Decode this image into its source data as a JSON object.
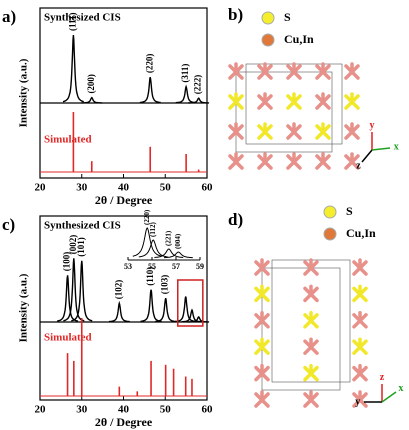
{
  "chart_data": [
    {
      "type": "xrd",
      "label": "a)",
      "xlabel": "2θ / Degree",
      "ylabel": "Intensity (a.u.)",
      "xlim": [
        20,
        60
      ],
      "xticks": [
        20,
        30,
        40,
        50,
        60
      ],
      "ylim": [
        0,
        100
      ],
      "series": [
        {
          "name": "Synthesized CIS",
          "color": "#000000",
          "style": "profile",
          "x": [
            28.0,
            32.4,
            46.4,
            55.0,
            58.0
          ],
          "values": [
            100,
            8,
            38,
            24,
            7
          ],
          "peak_labels": [
            "(111)",
            "(200)",
            "(220)",
            "(311)",
            "(222)"
          ]
        },
        {
          "name": "Simulated",
          "color": "#e02828",
          "style": "stick",
          "x": [
            28.0,
            32.4,
            46.4,
            55.0,
            58.0
          ],
          "values": [
            100,
            18,
            42,
            30,
            4
          ]
        }
      ]
    },
    {
      "type": "xrd",
      "label": "c)",
      "xlabel": "2θ / Degree",
      "ylabel": "Intensity (a.u.)",
      "xlim": [
        20,
        60
      ],
      "xticks": [
        20,
        30,
        40,
        50,
        60
      ],
      "ylim": [
        0,
        100
      ],
      "series": [
        {
          "name": "Synthesized CIS",
          "color": "#000000",
          "style": "profile",
          "x": [
            26.6,
            28.1,
            30.0,
            39.0,
            46.6,
            50.1,
            54.9,
            56.4,
            58.0
          ],
          "values": [
            55,
            75,
            72,
            22,
            38,
            28,
            30,
            14,
            6
          ],
          "peak_labels": [
            "(100)",
            "(002)",
            "(101)",
            "(102)",
            "(110)",
            "(103)",
            null,
            null,
            null
          ]
        },
        {
          "name": "Simulated",
          "color": "#e02828",
          "style": "stick",
          "x": [
            26.6,
            28.1,
            30.0,
            39.0,
            43.3,
            46.6,
            50.1,
            52.0,
            54.9,
            56.4
          ],
          "values": [
            55,
            45,
            100,
            12,
            6,
            45,
            40,
            35,
            25,
            22
          ]
        }
      ],
      "inset": {
        "xlim": [
          53,
          59
        ],
        "xticks": [
          53,
          55,
          57,
          59
        ],
        "x": [
          54.6,
          55.1,
          56.4,
          57.2
        ],
        "values": [
          100,
          60,
          30,
          20
        ],
        "peak_labels": [
          "(220)",
          "(112)",
          "(221)",
          "(004)"
        ]
      }
    }
  ],
  "structures": [
    {
      "label": "b)",
      "legend": [
        {
          "name": "S",
          "color": "#f4ee2c"
        },
        {
          "name": "Cu,In",
          "color": "#e0783a"
        }
      ],
      "axes": [
        "y",
        "z",
        "x"
      ]
    },
    {
      "label": "d)",
      "legend": [
        {
          "name": "S",
          "color": "#f4ee2c"
        },
        {
          "name": "Cu,In",
          "color": "#e0783a"
        }
      ],
      "axes": [
        "z",
        "y",
        "x"
      ]
    }
  ]
}
